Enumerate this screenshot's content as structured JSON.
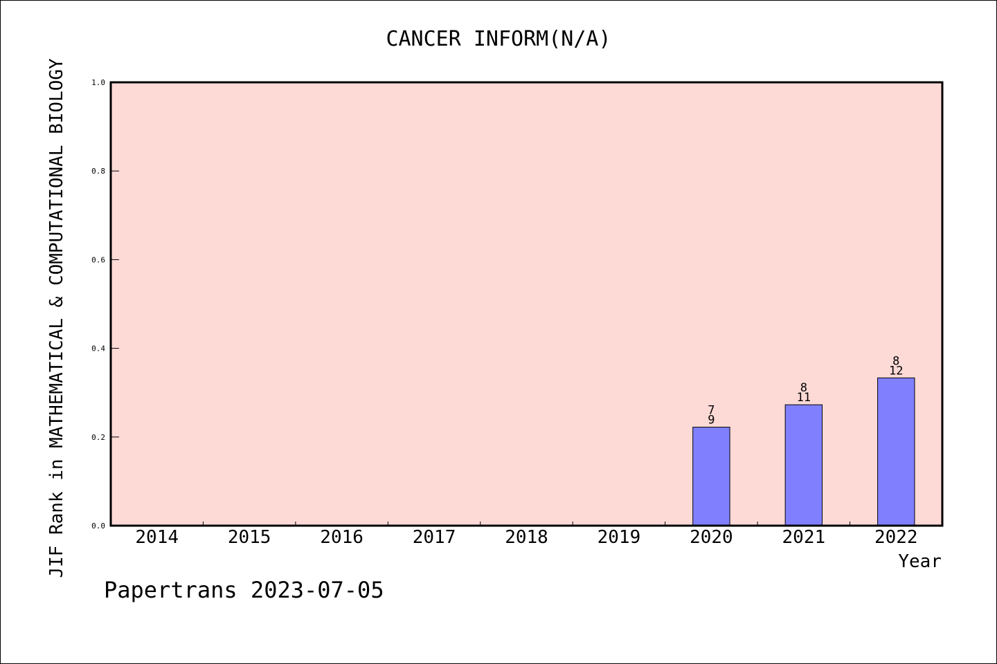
{
  "chart_data": {
    "type": "bar",
    "title": "CANCER INFORM(N/A)",
    "xlabel": "Year",
    "ylabel": "JIF Rank in MATHEMATICAL & COMPUTATIONAL BIOLOGY",
    "categories": [
      "2014",
      "2015",
      "2016",
      "2017",
      "2018",
      "2019",
      "2020",
      "2021",
      "2022"
    ],
    "ylim": [
      0,
      1.0
    ],
    "yticks": [
      "0.0",
      "0.2",
      "0.4",
      "0.6",
      "0.8",
      "1.0"
    ],
    "yticks_values": [
      0,
      0.2,
      0.4,
      0.6,
      0.8,
      1.0
    ],
    "grid": false,
    "bars": [
      {
        "category": "2020",
        "value": 0.2222,
        "rank": "7",
        "total": "9"
      },
      {
        "category": "2021",
        "value": 0.2727,
        "rank": "8",
        "total": "11"
      },
      {
        "category": "2022",
        "value": 0.3333,
        "rank": "8",
        "total": "12"
      }
    ],
    "colors": {
      "plot_background": "#fddad6",
      "bar_fill": "#8080ff",
      "axis": "#000000"
    }
  },
  "footer": "Papertrans 2023-07-05"
}
